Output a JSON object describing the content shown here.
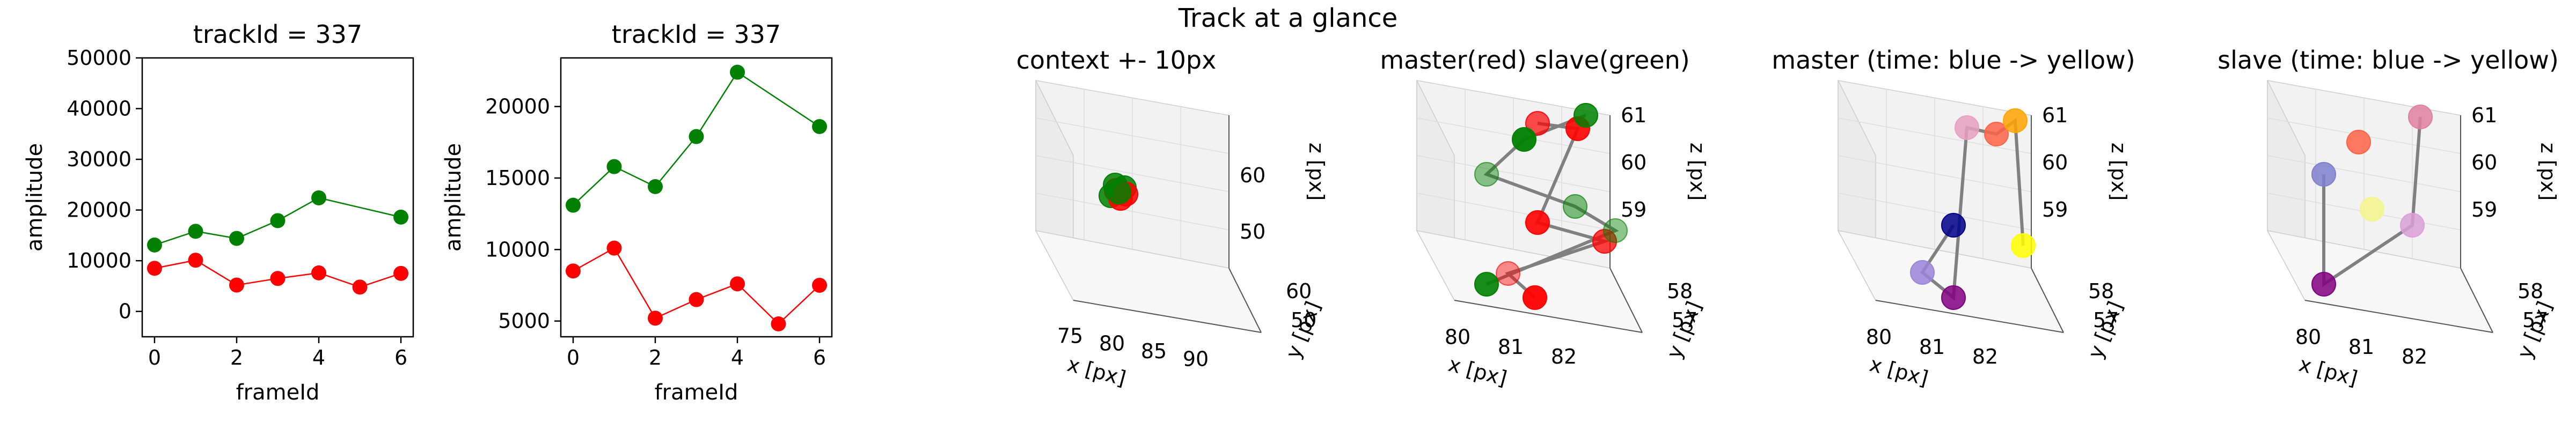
{
  "figure_title": "Track at a glance",
  "chart_data": [
    {
      "type": "line",
      "title": "trackId = 337",
      "xlabel": "frameId",
      "ylabel": "amplitude",
      "xlim": [
        -0.3,
        6.3
      ],
      "ylim": [
        -5000,
        50000
      ],
      "xticks": [
        0,
        2,
        4,
        6
      ],
      "yticks": [
        0,
        10000,
        20000,
        30000,
        40000,
        50000
      ],
      "grid": false,
      "series": [
        {
          "color": "#008000",
          "x": [
            0,
            1,
            2,
            3,
            4,
            6
          ],
          "y": [
            13100,
            15800,
            14400,
            17900,
            22400,
            18600
          ]
        },
        {
          "color": "#ff0000",
          "x": [
            0,
            1,
            2,
            3,
            4,
            5,
            6
          ],
          "y": [
            8500,
            10100,
            5200,
            6500,
            7600,
            4800,
            7500
          ]
        }
      ]
    },
    {
      "type": "line",
      "title": "trackId = 337",
      "xlabel": "frameId",
      "ylabel": "amplitude",
      "xlim": [
        -0.3,
        6.3
      ],
      "ylim": [
        3900,
        23400
      ],
      "xticks": [
        0,
        2,
        4,
        6
      ],
      "yticks": [
        5000,
        10000,
        15000,
        20000
      ],
      "grid": false,
      "series": [
        {
          "color": "#008000",
          "x": [
            0,
            1,
            2,
            3,
            4,
            6
          ],
          "y": [
            13100,
            15800,
            14400,
            17900,
            22400,
            18600
          ]
        },
        {
          "color": "#ff0000",
          "x": [
            0,
            1,
            2,
            3,
            4,
            5,
            6
          ],
          "y": [
            8500,
            10100,
            5200,
            6500,
            7600,
            4800,
            7500
          ]
        }
      ]
    },
    {
      "type": "scatter",
      "title": "context +- 10px",
      "xlabel": "x [px]",
      "ylabel": "y [px]",
      "zlabel": "z [px]",
      "projection": "3d",
      "xticks": [
        "75",
        "80",
        "85",
        "90"
      ],
      "yticks": [
        "50",
        "60"
      ],
      "zticks": [
        "50",
        "60"
      ],
      "points_description": "green and red points clustered near x=81, y=57-58, z=59-61"
    },
    {
      "type": "scatter",
      "title": "master(red) slave(green)",
      "xlabel": "x [px]",
      "ylabel": "y [px]",
      "zlabel": "z [px]",
      "projection": "3d",
      "xticks": [
        "80",
        "81",
        "82"
      ],
      "yticks": [
        "57",
        "58"
      ],
      "zticks": [
        "59",
        "60",
        "61"
      ],
      "series": [
        {
          "name": "master",
          "color": "#ff0000"
        },
        {
          "name": "slave",
          "color": "#008000"
        }
      ]
    },
    {
      "type": "scatter",
      "title": "master (time: blue -> yellow)",
      "xlabel": "x [px]",
      "ylabel": "y [px]",
      "zlabel": "z [px]",
      "projection": "3d",
      "xticks": [
        "80",
        "81",
        "82"
      ],
      "yticks": [
        "57",
        "58"
      ],
      "zticks": [
        "59",
        "60",
        "61"
      ],
      "colormap": [
        "#00008b",
        "#800080",
        "#c71585",
        "#ff6347",
        "#ffa500",
        "#ffff00"
      ]
    },
    {
      "type": "scatter",
      "title": "slave (time: blue -> yellow)",
      "xlabel": "x [px]",
      "ylabel": "y [px]",
      "zlabel": "z [px]",
      "projection": "3d",
      "xticks": [
        "80",
        "81",
        "82"
      ],
      "yticks": [
        "57",
        "58"
      ],
      "zticks": [
        "59",
        "60",
        "61"
      ],
      "colormap": [
        "#00008b",
        "#800080",
        "#c71585",
        "#ff6347",
        "#ffa500",
        "#ffff00"
      ]
    }
  ]
}
